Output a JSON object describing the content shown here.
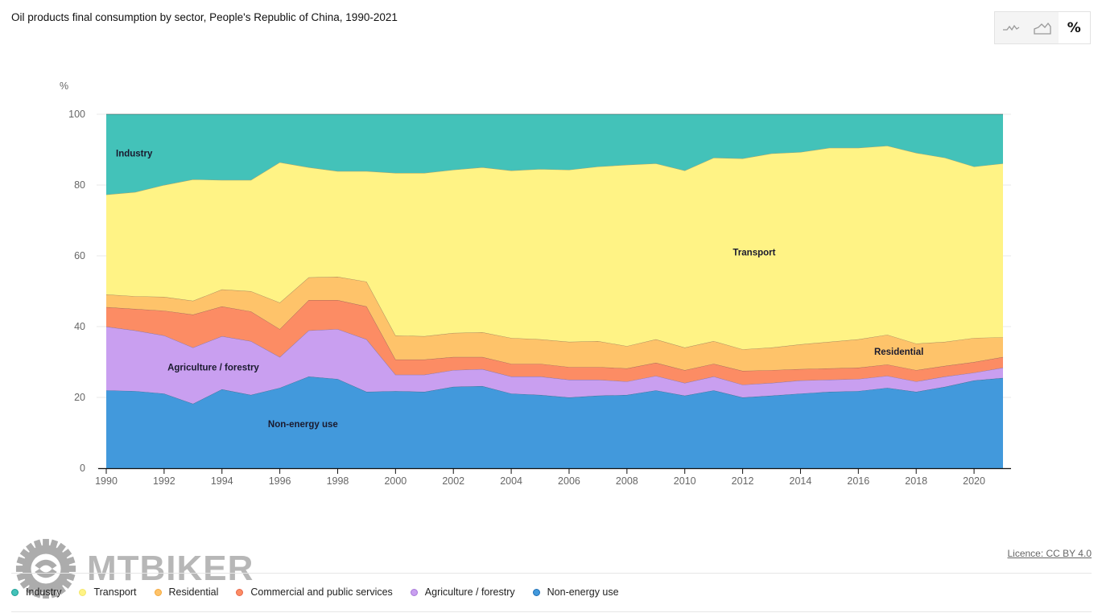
{
  "header": {
    "title": "Oil products final consumption by sector, People's Republic of China, 1990-2021"
  },
  "view_toggle": {
    "options": [
      {
        "name": "line-chart",
        "icon": "line-chart-icon",
        "active": false
      },
      {
        "name": "area-chart",
        "icon": "area-chart-icon",
        "active": false
      },
      {
        "name": "percent",
        "label": "%",
        "icon": "percent-icon",
        "active": true
      }
    ]
  },
  "footer": {
    "licence": "Licence: CC BY 4.0"
  },
  "watermark": {
    "text": "MTBIKER"
  },
  "chart_data": {
    "type": "area",
    "stacked": true,
    "normalized": true,
    "title": "Oil products final consumption by sector, People's Republic of China, 1990-2021",
    "ylabel": "%",
    "xlabel": "",
    "ylim": [
      0,
      100
    ],
    "xlim": [
      1990,
      2021
    ],
    "yticks": [
      0,
      20,
      40,
      60,
      80,
      100
    ],
    "xticks": [
      1990,
      1992,
      1994,
      1996,
      1998,
      2000,
      2002,
      2004,
      2006,
      2008,
      2010,
      2012,
      2014,
      2016,
      2018,
      2020
    ],
    "grid": "horizontal",
    "legend_position": "bottom",
    "x": [
      1990,
      1991,
      1992,
      1993,
      1994,
      1995,
      1996,
      1997,
      1998,
      1999,
      2000,
      2001,
      2002,
      2003,
      2004,
      2005,
      2006,
      2007,
      2008,
      2009,
      2010,
      2011,
      2012,
      2013,
      2014,
      2015,
      2016,
      2017,
      2018,
      2019,
      2020,
      2021
    ],
    "series": [
      {
        "name": "Non-energy use",
        "color": "#4299dc",
        "legend_color": "#1f6fb5",
        "values": [
          22.0,
          21.8,
          21.1,
          18.2,
          22.3,
          20.7,
          22.7,
          25.9,
          25.2,
          21.6,
          21.8,
          21.6,
          23.0,
          23.2,
          21.1,
          20.7,
          20.0,
          20.5,
          20.7,
          22.0,
          20.5,
          22.0,
          20.0,
          20.5,
          21.1,
          21.6,
          21.8,
          22.7,
          21.6,
          23.0,
          24.8,
          25.5
        ]
      },
      {
        "name": "Agriculture / forestry",
        "color": "#c99ff0",
        "legend_color": "#a778d8",
        "values": [
          18.0,
          17.1,
          16.4,
          15.9,
          15.0,
          15.2,
          8.7,
          13.0,
          14.1,
          14.8,
          4.6,
          4.8,
          4.7,
          4.8,
          4.8,
          5.2,
          5.0,
          4.5,
          3.8,
          4.1,
          3.6,
          3.9,
          3.6,
          3.6,
          3.7,
          3.4,
          3.4,
          3.4,
          2.9,
          2.9,
          2.2,
          2.9
        ]
      },
      {
        "name": "Commercial and public services",
        "color": "#fc8c64",
        "legend_color": "#e8674a",
        "values": [
          5.5,
          6.1,
          7.0,
          9.3,
          8.4,
          8.4,
          7.9,
          8.6,
          8.2,
          9.3,
          4.3,
          4.3,
          3.7,
          3.4,
          3.6,
          3.6,
          3.6,
          3.6,
          3.7,
          3.7,
          3.6,
          3.6,
          3.9,
          3.6,
          3.2,
          3.2,
          3.2,
          3.2,
          3.2,
          3.0,
          3.0,
          3.0
        ]
      },
      {
        "name": "Residential",
        "color": "#fec36a",
        "legend_color": "#f4a83b",
        "values": [
          3.6,
          3.6,
          3.9,
          3.9,
          4.8,
          5.7,
          7.5,
          6.4,
          6.6,
          7.0,
          6.8,
          6.6,
          6.8,
          7.0,
          7.3,
          6.9,
          7.1,
          7.3,
          6.3,
          6.6,
          6.4,
          6.4,
          6.1,
          6.4,
          7.0,
          7.5,
          8.0,
          8.4,
          7.5,
          6.8,
          6.8,
          5.6
        ]
      },
      {
        "name": "Transport",
        "color": "#fff385",
        "legend_color": "#f3e66b",
        "values": [
          28.2,
          29.4,
          31.6,
          34.3,
          30.9,
          31.4,
          39.6,
          31.1,
          29.8,
          31.2,
          45.9,
          46.1,
          46.1,
          46.6,
          47.3,
          48.1,
          48.6,
          49.3,
          51.2,
          49.7,
          50.0,
          51.8,
          53.9,
          54.8,
          54.3,
          54.8,
          54.1,
          53.4,
          53.9,
          52.0,
          48.4,
          49.1
        ]
      },
      {
        "name": "Industry",
        "color": "#43c2b9",
        "legend_color": "#1c9e94",
        "values": [
          22.7,
          22.0,
          20.0,
          18.4,
          18.6,
          18.6,
          13.6,
          15.0,
          16.1,
          16.1,
          16.6,
          16.6,
          15.7,
          15.0,
          15.9,
          15.5,
          15.7,
          14.8,
          14.3,
          13.9,
          15.9,
          12.3,
          12.5,
          11.1,
          10.7,
          9.5,
          9.5,
          8.9,
          10.9,
          12.3,
          14.8,
          13.9
        ]
      }
    ],
    "annotations": [
      {
        "text": "Industry",
        "series": "Industry",
        "x": 1991,
        "y": 89
      },
      {
        "text": "Transport",
        "series": "Transport",
        "x": 2012.4,
        "y": 61
      },
      {
        "text": "Residential",
        "series": "Residential",
        "x": 2017.4,
        "y": 33
      },
      {
        "text": "Agriculture / forestry",
        "series": "Agriculture / forestry",
        "x": 1993.7,
        "y": 28.5
      },
      {
        "text": "Non-energy use",
        "series": "Non-energy use",
        "x": 1996.8,
        "y": 12.5
      }
    ],
    "legend": [
      "Industry",
      "Transport",
      "Residential",
      "Commercial and public services",
      "Agriculture / forestry",
      "Non-energy use"
    ]
  }
}
